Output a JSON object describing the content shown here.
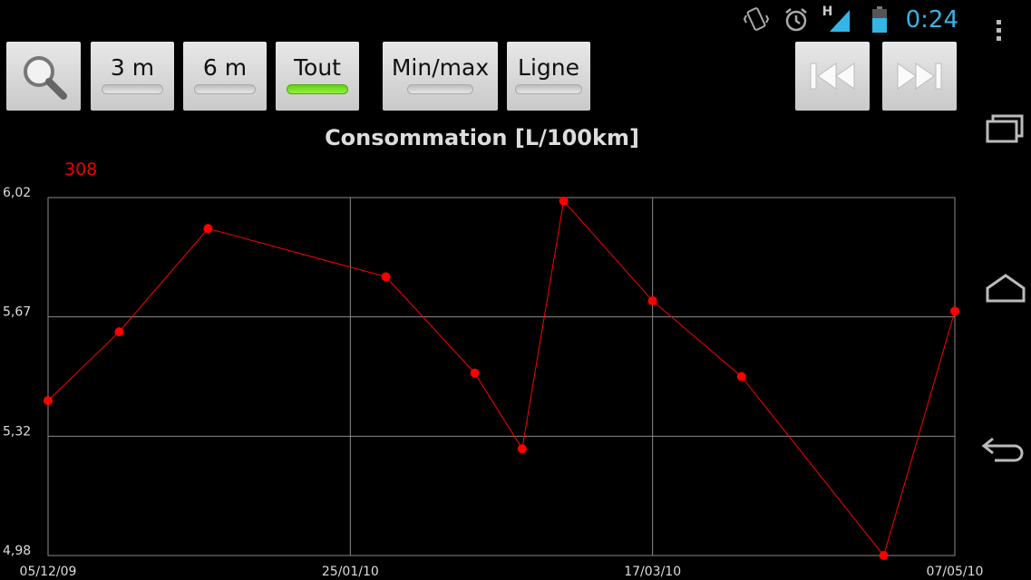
{
  "status": {
    "time": "0:24",
    "network": "H"
  },
  "toolbar": {
    "search_icon": "search-icon",
    "buttons": [
      {
        "label": "3 m",
        "active": false
      },
      {
        "label": "6 m",
        "active": false
      },
      {
        "label": "Tout",
        "active": true
      },
      {
        "label": "Min/max",
        "active": false
      },
      {
        "label": "Ligne",
        "active": false
      }
    ],
    "prev_icon": "rewind-icon",
    "next_icon": "fast-forward-icon"
  },
  "count_label": "308",
  "chart_data": {
    "type": "line",
    "title": "Consommation [L/100km]",
    "xlabel": "",
    "ylabel": "",
    "x_ticks": [
      "05/12/09",
      "25/01/10",
      "17/03/10",
      "07/05/10"
    ],
    "y_ticks": [
      "6,02",
      "5,67",
      "5,32",
      "4,98"
    ],
    "ylim": [
      4.98,
      6.02
    ],
    "xlim": [
      "2009-12-05",
      "2010-05-07"
    ],
    "grid": true,
    "color": "#ff0000",
    "series": [
      {
        "x": [
          "2009-12-05",
          "2009-12-17",
          "2010-01-01",
          "2010-01-31",
          "2010-02-15",
          "2010-02-23",
          "2010-03-02",
          "2010-03-17",
          "2010-04-01",
          "2010-04-25",
          "2010-05-07"
        ],
        "values": [
          5.43,
          5.63,
          5.93,
          5.79,
          5.51,
          5.29,
          6.01,
          5.72,
          5.5,
          4.98,
          5.69
        ]
      }
    ]
  }
}
